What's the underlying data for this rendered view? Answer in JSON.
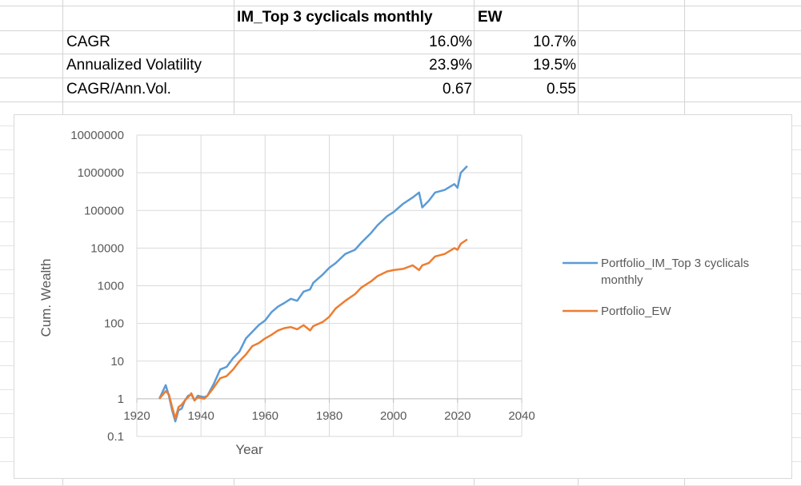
{
  "table": {
    "headers": [
      "",
      "IM_Top 3 cyclicals monthly",
      "EW"
    ],
    "rows": [
      {
        "label": "CAGR",
        "im": "16.0%",
        "ew": "10.7%"
      },
      {
        "label": "Annualized Volatility",
        "im": "23.9%",
        "ew": "19.5%"
      },
      {
        "label": "CAGR/Ann.Vol.",
        "im": "0.67",
        "ew": "0.55"
      }
    ]
  },
  "chart_data": {
    "type": "line",
    "title": "",
    "xlabel": "Year",
    "ylabel": "Cum. Wealth",
    "xlim": [
      1920,
      2040
    ],
    "ylim": [
      0.1,
      10000000
    ],
    "yscale": "log",
    "xticks": [
      "1920",
      "1940",
      "1960",
      "1980",
      "2000",
      "2020",
      "2040"
    ],
    "yticks": [
      "10000000",
      "1000000",
      "100000",
      "10000",
      "1000",
      "100",
      "10",
      "1",
      "0.1"
    ],
    "grid": true,
    "legend_position": "right",
    "series": [
      {
        "name": "Portfolio_IM_Top 3 cyclicals monthly",
        "color": "#5b9bd5",
        "points": [
          [
            1927,
            1
          ],
          [
            1929,
            2.3
          ],
          [
            1930,
            1.2
          ],
          [
            1931,
            0.5
          ],
          [
            1932,
            0.25
          ],
          [
            1933,
            0.5
          ],
          [
            1934,
            0.55
          ],
          [
            1935,
            0.9
          ],
          [
            1936,
            1.2
          ],
          [
            1937,
            1.3
          ],
          [
            1938,
            0.9
          ],
          [
            1939,
            1.2
          ],
          [
            1941,
            1.1
          ],
          [
            1942,
            1.2
          ],
          [
            1944,
            2.5
          ],
          [
            1946,
            6
          ],
          [
            1948,
            7
          ],
          [
            1950,
            12
          ],
          [
            1952,
            18
          ],
          [
            1954,
            40
          ],
          [
            1956,
            60
          ],
          [
            1958,
            90
          ],
          [
            1960,
            120
          ],
          [
            1962,
            200
          ],
          [
            1964,
            280
          ],
          [
            1966,
            350
          ],
          [
            1968,
            450
          ],
          [
            1970,
            400
          ],
          [
            1972,
            700
          ],
          [
            1974,
            800
          ],
          [
            1975,
            1200
          ],
          [
            1978,
            2000
          ],
          [
            1980,
            3000
          ],
          [
            1982,
            4000
          ],
          [
            1985,
            7000
          ],
          [
            1988,
            9000
          ],
          [
            1990,
            14000
          ],
          [
            1993,
            25000
          ],
          [
            1995,
            40000
          ],
          [
            1998,
            70000
          ],
          [
            2000,
            90000
          ],
          [
            2003,
            150000
          ],
          [
            2006,
            220000
          ],
          [
            2008,
            300000
          ],
          [
            2009,
            120000
          ],
          [
            2011,
            180000
          ],
          [
            2013,
            300000
          ],
          [
            2016,
            350000
          ],
          [
            2019,
            500000
          ],
          [
            2020,
            400000
          ],
          [
            2021,
            1000000
          ],
          [
            2023,
            1500000
          ]
        ]
      },
      {
        "name": "Portfolio_EW",
        "color": "#ed7d31",
        "points": [
          [
            1927,
            1
          ],
          [
            1929,
            1.6
          ],
          [
            1930,
            1.3
          ],
          [
            1931,
            0.6
          ],
          [
            1932,
            0.3
          ],
          [
            1933,
            0.6
          ],
          [
            1934,
            0.7
          ],
          [
            1935,
            0.9
          ],
          [
            1936,
            1.1
          ],
          [
            1937,
            1.4
          ],
          [
            1938,
            0.9
          ],
          [
            1939,
            1.1
          ],
          [
            1941,
            1.0
          ],
          [
            1942,
            1.2
          ],
          [
            1944,
            2
          ],
          [
            1946,
            3.5
          ],
          [
            1948,
            4
          ],
          [
            1950,
            6
          ],
          [
            1952,
            10
          ],
          [
            1954,
            15
          ],
          [
            1956,
            25
          ],
          [
            1958,
            30
          ],
          [
            1960,
            40
          ],
          [
            1962,
            50
          ],
          [
            1964,
            65
          ],
          [
            1966,
            75
          ],
          [
            1968,
            80
          ],
          [
            1970,
            70
          ],
          [
            1972,
            90
          ],
          [
            1974,
            65
          ],
          [
            1975,
            85
          ],
          [
            1978,
            110
          ],
          [
            1980,
            150
          ],
          [
            1982,
            250
          ],
          [
            1985,
            400
          ],
          [
            1988,
            600
          ],
          [
            1990,
            900
          ],
          [
            1993,
            1300
          ],
          [
            1995,
            1800
          ],
          [
            1998,
            2400
          ],
          [
            2000,
            2600
          ],
          [
            2003,
            2800
          ],
          [
            2006,
            3500
          ],
          [
            2008,
            2600
          ],
          [
            2009,
            3500
          ],
          [
            2011,
            4000
          ],
          [
            2013,
            6000
          ],
          [
            2016,
            7000
          ],
          [
            2019,
            10000
          ],
          [
            2020,
            9000
          ],
          [
            2021,
            13000
          ],
          [
            2023,
            17000
          ]
        ]
      }
    ]
  }
}
